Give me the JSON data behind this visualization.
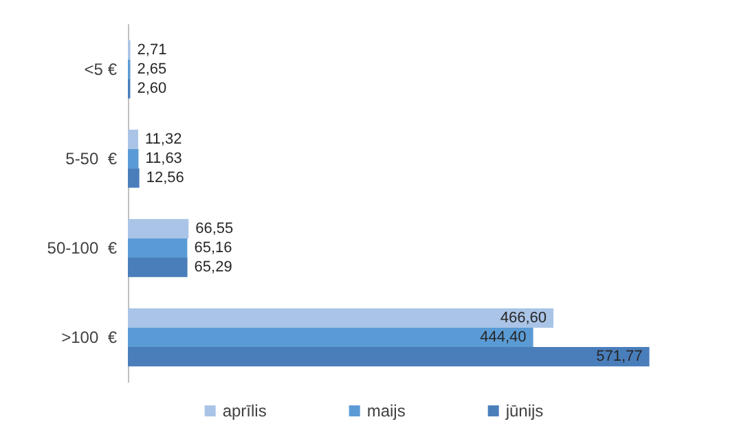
{
  "chart_data": {
    "type": "bar",
    "orientation": "horizontal",
    "categories": [
      "<5 €",
      "5-50  €",
      "50-100  €",
      ">100  €"
    ],
    "series": [
      {
        "name": "aprīlis",
        "color": "#a9c4e6",
        "values": [
          2.71,
          11.32,
          66.55,
          466.6
        ],
        "value_labels": [
          "2,71",
          "11,32",
          "66,55",
          "466,60"
        ]
      },
      {
        "name": "maijs",
        "color": "#5b9bd5",
        "values": [
          2.65,
          11.63,
          65.16,
          444.4
        ],
        "value_labels": [
          "2,65",
          "11,63",
          "65,16",
          "444,40"
        ]
      },
      {
        "name": "jūnijs",
        "color": "#4a7ebb",
        "values": [
          2.6,
          12.56,
          65.29,
          571.77
        ],
        "value_labels": [
          "2,60",
          "12,56",
          "65,29",
          "571,77"
        ]
      }
    ],
    "legend": "bottom"
  }
}
